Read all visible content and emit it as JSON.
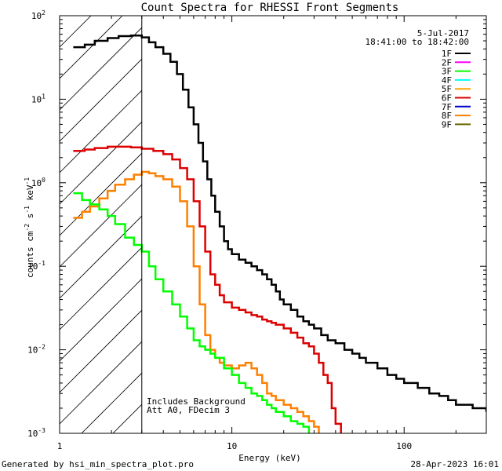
{
  "chart_data": {
    "type": "line",
    "title": "Count Spectra for RHESSI Front Segments",
    "xlabel": "Energy (keV)",
    "ylabel_parts": {
      "a": "counts cm",
      "b": "-2",
      "c": " s",
      "d": "-1",
      "e": " keV",
      "f": "-1"
    },
    "x_scale": "log",
    "y_scale": "log",
    "xlim": [
      1,
      300
    ],
    "ylim": [
      0.001,
      100
    ],
    "x_ticks": [
      {
        "value": 1,
        "label": "1"
      },
      {
        "value": 10,
        "label": "10"
      },
      {
        "value": 100,
        "label": "100"
      }
    ],
    "y_ticks": [
      {
        "value": 0.001,
        "base": "10",
        "exp": "-3"
      },
      {
        "value": 0.01,
        "base": "10",
        "exp": "-2"
      },
      {
        "value": 0.1,
        "base": "10",
        "exp": "-1"
      },
      {
        "value": 1,
        "base": "10",
        "exp": "0"
      },
      {
        "value": 10,
        "base": "10",
        "exp": "1"
      },
      {
        "value": 100,
        "base": "10",
        "exp": "2"
      }
    ],
    "date": "5-Jul-2017",
    "time_range": "18:41:00 to 18:42:00",
    "hatched_region_keV": [
      1,
      3
    ],
    "annotations": [
      "Includes Background",
      "Att A0, FDecim 3"
    ],
    "legend": [
      {
        "name": "1F",
        "color": "#000000"
      },
      {
        "name": "2F",
        "color": "#ff00ff"
      },
      {
        "name": "3F",
        "color": "#00ff00"
      },
      {
        "name": "4F",
        "color": "#00ffff"
      },
      {
        "name": "5F",
        "color": "#ffa500"
      },
      {
        "name": "6F",
        "color": "#dd0000"
      },
      {
        "name": "7F",
        "color": "#0000cc"
      },
      {
        "name": "8F",
        "color": "#ff8000"
      },
      {
        "name": "9F",
        "color": "#666600"
      }
    ],
    "series": [
      {
        "name": "1F",
        "color": "#000000",
        "x": [
          1.2,
          1.4,
          1.6,
          1.9,
          2.2,
          2.6,
          3.0,
          3.3,
          3.6,
          4.0,
          4.4,
          4.8,
          5.2,
          5.6,
          6.0,
          6.4,
          6.8,
          7.2,
          7.6,
          8.0,
          8.5,
          9.0,
          9.5,
          10,
          11,
          12,
          13,
          14,
          15,
          16,
          17,
          18,
          19,
          20,
          22,
          24,
          26,
          28,
          30,
          33,
          36,
          40,
          45,
          50,
          55,
          60,
          70,
          80,
          90,
          100,
          120,
          140,
          160,
          180,
          200,
          250,
          300
        ],
        "y": [
          42,
          45,
          50,
          54,
          57,
          58,
          55,
          48,
          42,
          35,
          28,
          20,
          13,
          8,
          5,
          3,
          1.8,
          1.1,
          0.7,
          0.45,
          0.3,
          0.2,
          0.16,
          0.14,
          0.12,
          0.11,
          0.1,
          0.09,
          0.08,
          0.07,
          0.06,
          0.05,
          0.04,
          0.035,
          0.03,
          0.025,
          0.022,
          0.02,
          0.018,
          0.015,
          0.013,
          0.012,
          0.01,
          0.009,
          0.008,
          0.007,
          0.006,
          0.005,
          0.0045,
          0.004,
          0.0035,
          0.003,
          0.0028,
          0.0025,
          0.0022,
          0.002,
          0.0018
        ]
      },
      {
        "name": "6F",
        "color": "#dd0000",
        "x": [
          1.2,
          1.4,
          1.6,
          1.9,
          2.2,
          2.6,
          3.0,
          3.5,
          4.0,
          4.5,
          5.0,
          5.5,
          6.0,
          6.5,
          7.0,
          7.5,
          8.0,
          8.5,
          9.0,
          10,
          11,
          12,
          13,
          14,
          15,
          16,
          17,
          18,
          20,
          22,
          24,
          26,
          28,
          30,
          32,
          34,
          36,
          38,
          40,
          43
        ],
        "y": [
          2.4,
          2.5,
          2.6,
          2.7,
          2.7,
          2.65,
          2.55,
          2.4,
          2.2,
          1.9,
          1.5,
          1.1,
          0.6,
          0.3,
          0.15,
          0.08,
          0.06,
          0.045,
          0.037,
          0.032,
          0.03,
          0.028,
          0.026,
          0.025,
          0.023,
          0.022,
          0.021,
          0.02,
          0.018,
          0.016,
          0.014,
          0.012,
          0.011,
          0.009,
          0.007,
          0.005,
          0.004,
          0.002,
          0.0013,
          0.001
        ]
      },
      {
        "name": "8F",
        "color": "#ff8000",
        "x": [
          1.2,
          1.35,
          1.5,
          1.7,
          1.9,
          2.1,
          2.4,
          2.7,
          3.0,
          3.3,
          3.6,
          4.0,
          4.5,
          5.0,
          5.5,
          6.0,
          6.5,
          7.0,
          7.5,
          8.0,
          8.5,
          9.0,
          10,
          11,
          12,
          13,
          14,
          15,
          16,
          17,
          18,
          20,
          22,
          24,
          26,
          28,
          30,
          32
        ],
        "y": [
          0.38,
          0.45,
          0.52,
          0.65,
          0.8,
          0.95,
          1.1,
          1.25,
          1.35,
          1.3,
          1.2,
          1.1,
          0.9,
          0.6,
          0.3,
          0.1,
          0.035,
          0.015,
          0.01,
          0.008,
          0.007,
          0.0065,
          0.006,
          0.0065,
          0.007,
          0.006,
          0.005,
          0.004,
          0.003,
          0.0028,
          0.0025,
          0.0022,
          0.002,
          0.0018,
          0.0016,
          0.0014,
          0.0012,
          0.001
        ]
      },
      {
        "name": "3F",
        "color": "#00ff00",
        "x": [
          1.2,
          1.35,
          1.5,
          1.7,
          1.9,
          2.1,
          2.4,
          2.7,
          3.0,
          3.3,
          3.6,
          4.0,
          4.5,
          5.0,
          5.5,
          6.0,
          6.5,
          7.0,
          7.5,
          8.0,
          9.0,
          10,
          11,
          12,
          13,
          14,
          15,
          16,
          17,
          18,
          20,
          22,
          24,
          26,
          28
        ],
        "y": [
          0.75,
          0.62,
          0.55,
          0.48,
          0.4,
          0.32,
          0.22,
          0.18,
          0.15,
          0.1,
          0.07,
          0.05,
          0.035,
          0.025,
          0.018,
          0.013,
          0.011,
          0.01,
          0.009,
          0.008,
          0.006,
          0.005,
          0.004,
          0.0035,
          0.003,
          0.0028,
          0.0025,
          0.0022,
          0.002,
          0.0018,
          0.0016,
          0.0014,
          0.0013,
          0.0012,
          0.001
        ]
      }
    ]
  },
  "footer": {
    "left": "Generated by hsi_min_spectra_plot.pro",
    "right": "28-Apr-2023 16:01"
  }
}
